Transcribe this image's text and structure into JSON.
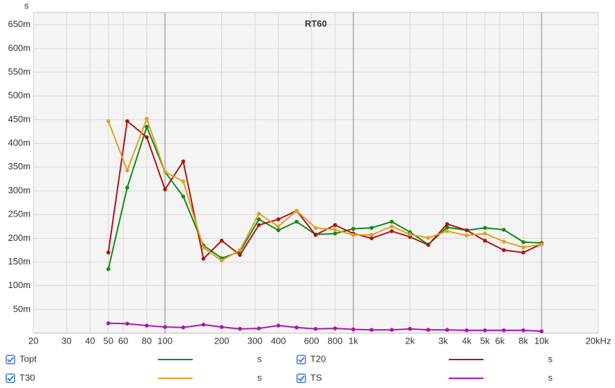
{
  "chart_data": {
    "type": "line",
    "title": "RT60",
    "y_label": "s",
    "log_x": true,
    "grid": true,
    "x": [
      50,
      63,
      80,
      100,
      125,
      160,
      200,
      250,
      315,
      400,
      500,
      630,
      800,
      1000,
      1250,
      1600,
      2000,
      2500,
      3150,
      4000,
      5000,
      6300,
      8000,
      10000
    ],
    "xlim": [
      20,
      20000
    ],
    "xticks": [
      20,
      30,
      40,
      50,
      60,
      80,
      100,
      200,
      300,
      400,
      600,
      800,
      {
        "value": 1000,
        "label": "1k"
      },
      {
        "value": 2000,
        "label": "2k"
      },
      {
        "value": 3000,
        "label": "3k"
      },
      {
        "value": 4000,
        "label": "4k"
      },
      {
        "value": 5000,
        "label": "5k"
      },
      {
        "value": 6000,
        "label": "6k"
      },
      {
        "value": 8000,
        "label": "8k"
      },
      {
        "value": 10000,
        "label": "10k"
      },
      {
        "value": 20000,
        "label": "20kHz"
      }
    ],
    "ylim": [
      0,
      0.676
    ],
    "yticks": [
      {
        "value": 0.05,
        "label": "50m"
      },
      {
        "value": 0.1,
        "label": "100m"
      },
      {
        "value": 0.15,
        "label": "150m"
      },
      {
        "value": 0.2,
        "label": "200m"
      },
      {
        "value": 0.25,
        "label": "250m"
      },
      {
        "value": 0.3,
        "label": "300m"
      },
      {
        "value": 0.35,
        "label": "350m"
      },
      {
        "value": 0.4,
        "label": "400m"
      },
      {
        "value": 0.45,
        "label": "450m"
      },
      {
        "value": 0.5,
        "label": "500m"
      },
      {
        "value": 0.55,
        "label": "550m"
      },
      {
        "value": 0.6,
        "label": "600m"
      },
      {
        "value": 0.65,
        "label": "650m"
      }
    ],
    "series": [
      {
        "name": "Topt",
        "unit": "s",
        "color": "#138a13",
        "values": [
          0.135,
          0.307,
          0.435,
          0.34,
          0.288,
          0.185,
          0.158,
          0.172,
          0.24,
          0.217,
          0.235,
          0.208,
          0.21,
          0.22,
          0.222,
          0.235,
          0.213,
          0.187,
          0.223,
          0.217,
          0.222,
          0.218,
          0.192,
          0.19
        ]
      },
      {
        "name": "T20",
        "unit": "s",
        "color": "#b01212",
        "values": [
          0.17,
          0.447,
          0.413,
          0.303,
          0.362,
          0.157,
          0.195,
          0.165,
          0.228,
          0.24,
          0.258,
          0.207,
          0.228,
          0.21,
          0.2,
          0.215,
          0.203,
          0.186,
          0.23,
          0.217,
          0.195,
          0.175,
          0.17,
          0.188
        ]
      },
      {
        "name": "T30",
        "unit": "s",
        "color": "#e0a020",
        "values": [
          0.447,
          0.343,
          0.452,
          0.34,
          0.32,
          0.18,
          0.153,
          0.175,
          0.252,
          0.225,
          0.258,
          0.222,
          0.218,
          0.207,
          0.207,
          0.225,
          0.208,
          0.201,
          0.215,
          0.206,
          0.21,
          0.193,
          0.181,
          0.187
        ]
      },
      {
        "name": "TS",
        "unit": "s",
        "color": "#b012b0",
        "values": [
          0.021,
          0.02,
          0.016,
          0.013,
          0.012,
          0.018,
          0.013,
          0.009,
          0.01,
          0.016,
          0.012,
          0.009,
          0.01,
          0.008,
          0.007,
          0.007,
          0.009,
          0.007,
          0.007,
          0.006,
          0.006,
          0.006,
          0.006,
          0.004
        ]
      }
    ]
  }
}
